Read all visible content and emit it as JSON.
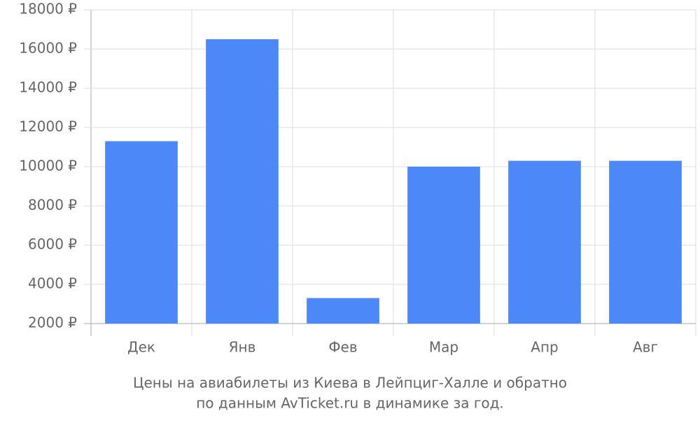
{
  "chart_data": {
    "type": "bar",
    "title": "Цены на авиабилеты из Киева в Лейпциг-Халле и обратно",
    "subtitle": "по данным AvTicket.ru в динамике за год.",
    "categories": [
      "Дек",
      "Янв",
      "Фев",
      "Мар",
      "Апр",
      "Авг"
    ],
    "values": [
      11300,
      16500,
      3300,
      10000,
      10300,
      10300
    ],
    "color": "#4d88f9",
    "ylim": [
      2000,
      18000
    ],
    "yticks": [
      {
        "value": 2000,
        "label": "2000 ₽"
      },
      {
        "value": 4000,
        "label": "4000 ₽"
      },
      {
        "value": 6000,
        "label": "6000 ₽"
      },
      {
        "value": 8000,
        "label": "8000 ₽"
      },
      {
        "value": 10000,
        "label": "10000 ₽"
      },
      {
        "value": 12000,
        "label": "12000 ₽"
      },
      {
        "value": 14000,
        "label": "14000 ₽"
      },
      {
        "value": 16000,
        "label": "16000 ₽"
      },
      {
        "value": 18000,
        "label": "18000 ₽"
      }
    ],
    "grid": true
  }
}
